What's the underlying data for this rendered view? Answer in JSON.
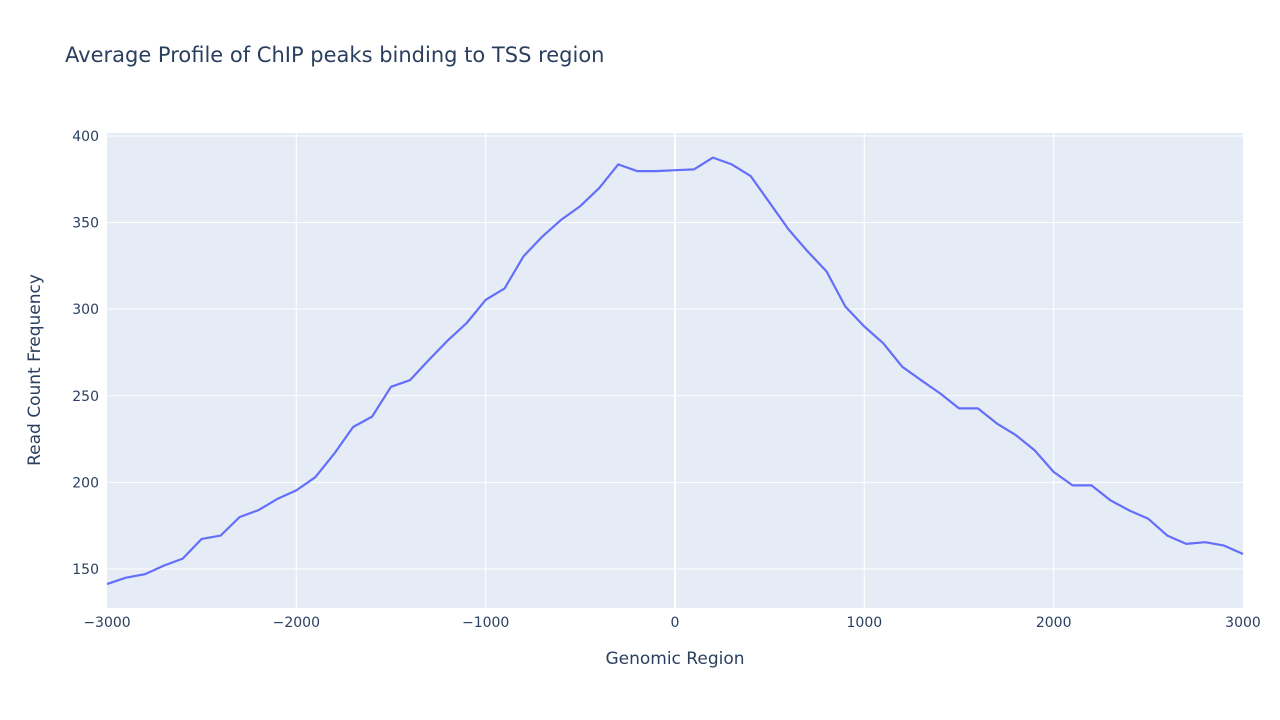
{
  "chart_data": {
    "type": "line",
    "title": "Average Profile of ChIP peaks binding to TSS region",
    "xlabel": "Genomic Region",
    "ylabel": "Read Count Frequency",
    "xlim": [
      -3000,
      3000
    ],
    "ylim": [
      127.5,
      401.7
    ],
    "xticks": [
      -3000,
      -2000,
      -1000,
      0,
      1000,
      2000,
      3000
    ],
    "xtick_labels": [
      "−3000",
      "−2000",
      "−1000",
      "0",
      "1000",
      "2000",
      "3000"
    ],
    "yticks": [
      150,
      200,
      250,
      300,
      350,
      400
    ],
    "ytick_labels": [
      "150",
      "200",
      "250",
      "300",
      "350",
      "400"
    ],
    "grid": true,
    "background": "#e5ecf6",
    "line_color": "#636efa",
    "series": [
      {
        "x": [
          -3000,
          -2900,
          -2800,
          -2700,
          -2600,
          -2500,
          -2400,
          -2300,
          -2200,
          -2100,
          -2000,
          -1900,
          -1800,
          -1700,
          -1600,
          -1500,
          -1400,
          -1300,
          -1200,
          -1100,
          -1000,
          -900,
          -800,
          -700,
          -600,
          -500,
          -400,
          -300,
          -200,
          -100,
          0,
          100,
          200,
          300,
          400,
          500,
          600,
          700,
          800,
          900,
          1000,
          1100,
          1200,
          1300,
          1400,
          1500,
          1600,
          1700,
          1800,
          1900,
          2000,
          2100,
          2200,
          2300,
          2400,
          2500,
          2600,
          2700,
          2800,
          2900,
          3000
        ],
        "y": [
          141.3,
          145,
          147,
          152,
          156,
          167.4,
          169.3,
          180,
          184,
          190.5,
          195.4,
          203,
          216.6,
          232,
          238,
          255.2,
          259,
          270.7,
          282,
          292,
          305.4,
          312,
          330.5,
          342,
          351.7,
          359.5,
          370,
          383.6,
          379.7,
          379.7,
          380.2,
          380.7,
          387.5,
          383.6,
          376.8,
          361.4,
          346,
          333.4,
          321.8,
          301.5,
          290,
          280.3,
          266.8,
          259,
          251.4,
          242.7,
          242.7,
          234,
          227.3,
          218.5,
          206,
          198.3,
          198.3,
          189.6,
          183.8,
          179,
          169.3,
          164.5,
          165.5,
          163.5,
          158.7
        ]
      }
    ]
  }
}
